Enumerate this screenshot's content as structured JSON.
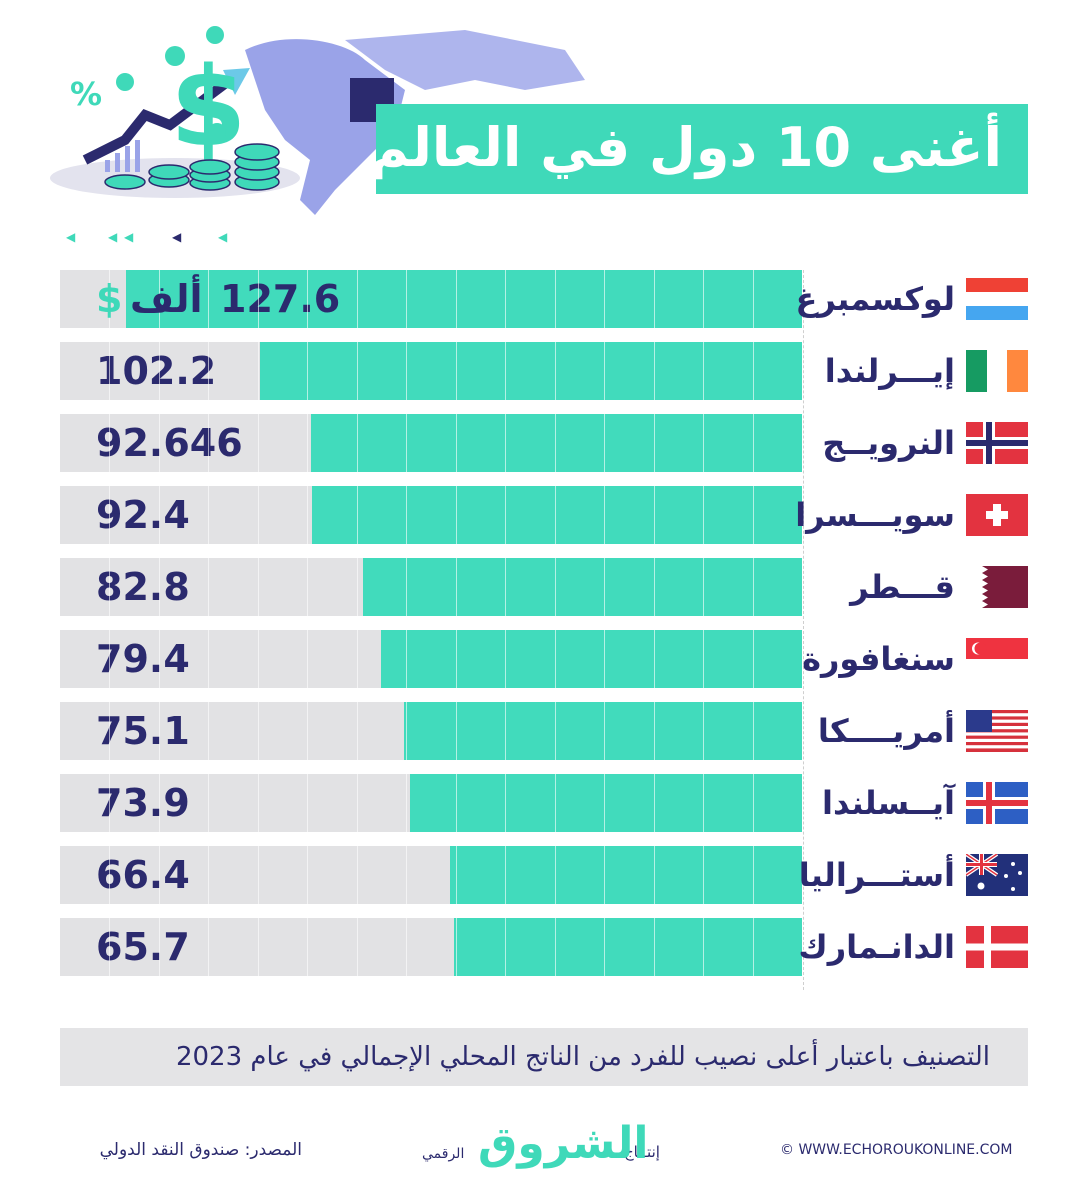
{
  "header": {
    "title": "أغنى 10 دول في العالم"
  },
  "chart_data": {
    "type": "bar",
    "orientation": "horizontal",
    "title": "أغنى 10 دول في العالم",
    "unit_label": "ألف",
    "currency": "$",
    "categories": [
      "لوكسمبرغ",
      "إيـــرلندا",
      "النرويــج",
      "سويـــسرا",
      "قـــطر",
      "سنغافورة",
      "أمريــــكا",
      "آيــسلندا",
      "أستـــراليا",
      "الدانـمارك"
    ],
    "values": [
      127.6,
      102.2,
      92.646,
      92.4,
      82.8,
      79.4,
      75.1,
      73.9,
      66.4,
      65.7
    ],
    "value_labels": [
      "127.6",
      "102.2",
      "92.646",
      "92.4",
      "82.8",
      "79.4",
      "75.1",
      "73.9",
      "66.4",
      "65.7"
    ],
    "xlim": [
      0,
      140
    ],
    "grid": true,
    "colors": {
      "bar": "#41dbbc",
      "track": "#e2e2e4",
      "text": "#2b2a6e",
      "accent": "#3fd9b9"
    }
  },
  "flags": [
    "luxembourg",
    "ireland",
    "norway",
    "switzerland",
    "qatar",
    "singapore",
    "usa",
    "iceland",
    "australia",
    "denmark"
  ],
  "footer": {
    "note": "التصنيف باعتبار أعلى نصيب للفرد من الناتج المحلي الإجمالي في عام 2023",
    "source": "المصدر:  صندوق النقد الدولي",
    "production": "إنتــاج",
    "brand": "الشروق",
    "brand_sub": "الرقمي",
    "website": "© WWW.ECHOROUKONLINE.COM"
  }
}
